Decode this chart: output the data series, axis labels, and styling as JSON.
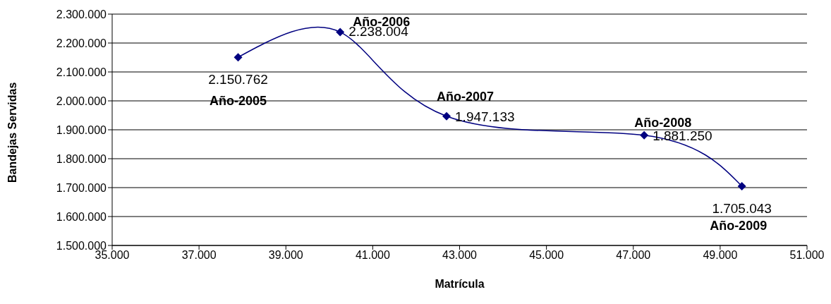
{
  "chart_data": {
    "type": "line",
    "xlabel": "Matrícula",
    "ylabel": "Bandejas Servidas",
    "x": [
      37900,
      40250,
      42700,
      47250,
      49500
    ],
    "series": [
      {
        "color": "#000080",
        "values": [
          2150762,
          2238004,
          1947133,
          1881250,
          1705043
        ],
        "value_labels": [
          "2.150.762",
          "2.238.004",
          "1.947.133",
          "1.881.250",
          "1.705.043"
        ]
      }
    ],
    "annotations": [
      {
        "text": "Año-2005",
        "x": 37900,
        "y": 2150762
      },
      {
        "text": "Año-2006",
        "x": 40250,
        "y": 2238004
      },
      {
        "text": "Año-2007",
        "x": 42700,
        "y": 1947133
      },
      {
        "text": "Año-2008",
        "x": 47250,
        "y": 1881250
      },
      {
        "text": "Año-2009",
        "x": 49500,
        "y": 1705043
      }
    ],
    "xlim": [
      35000,
      51000
    ],
    "xticks": [
      {
        "value": 35000,
        "label": "35.000"
      },
      {
        "value": 37000,
        "label": "37.000"
      },
      {
        "value": 39000,
        "label": "39.000"
      },
      {
        "value": 41000,
        "label": "41.000"
      },
      {
        "value": 43000,
        "label": "43.000"
      },
      {
        "value": 45000,
        "label": "45.000"
      },
      {
        "value": 47000,
        "label": "47.000"
      },
      {
        "value": 49000,
        "label": "49.000"
      },
      {
        "value": 51000,
        "label": "51.000"
      }
    ],
    "ylim": [
      1500000,
      2300000
    ],
    "yticks": [
      {
        "value": 1500000,
        "label": "1.500.000"
      },
      {
        "value": 1600000,
        "label": "1.600.000"
      },
      {
        "value": 1700000,
        "label": "1.700.000"
      },
      {
        "value": 1800000,
        "label": "1.800.000"
      },
      {
        "value": 1900000,
        "label": "1.900.000"
      },
      {
        "value": 2000000,
        "label": "2.000.000"
      },
      {
        "value": 2100000,
        "label": "2.100.000"
      },
      {
        "value": 2200000,
        "label": "2.200.000"
      },
      {
        "value": 2300000,
        "label": "2.300.000"
      }
    ],
    "grid": "y",
    "legend": false,
    "marker": "diamond",
    "line_style": "solid"
  }
}
